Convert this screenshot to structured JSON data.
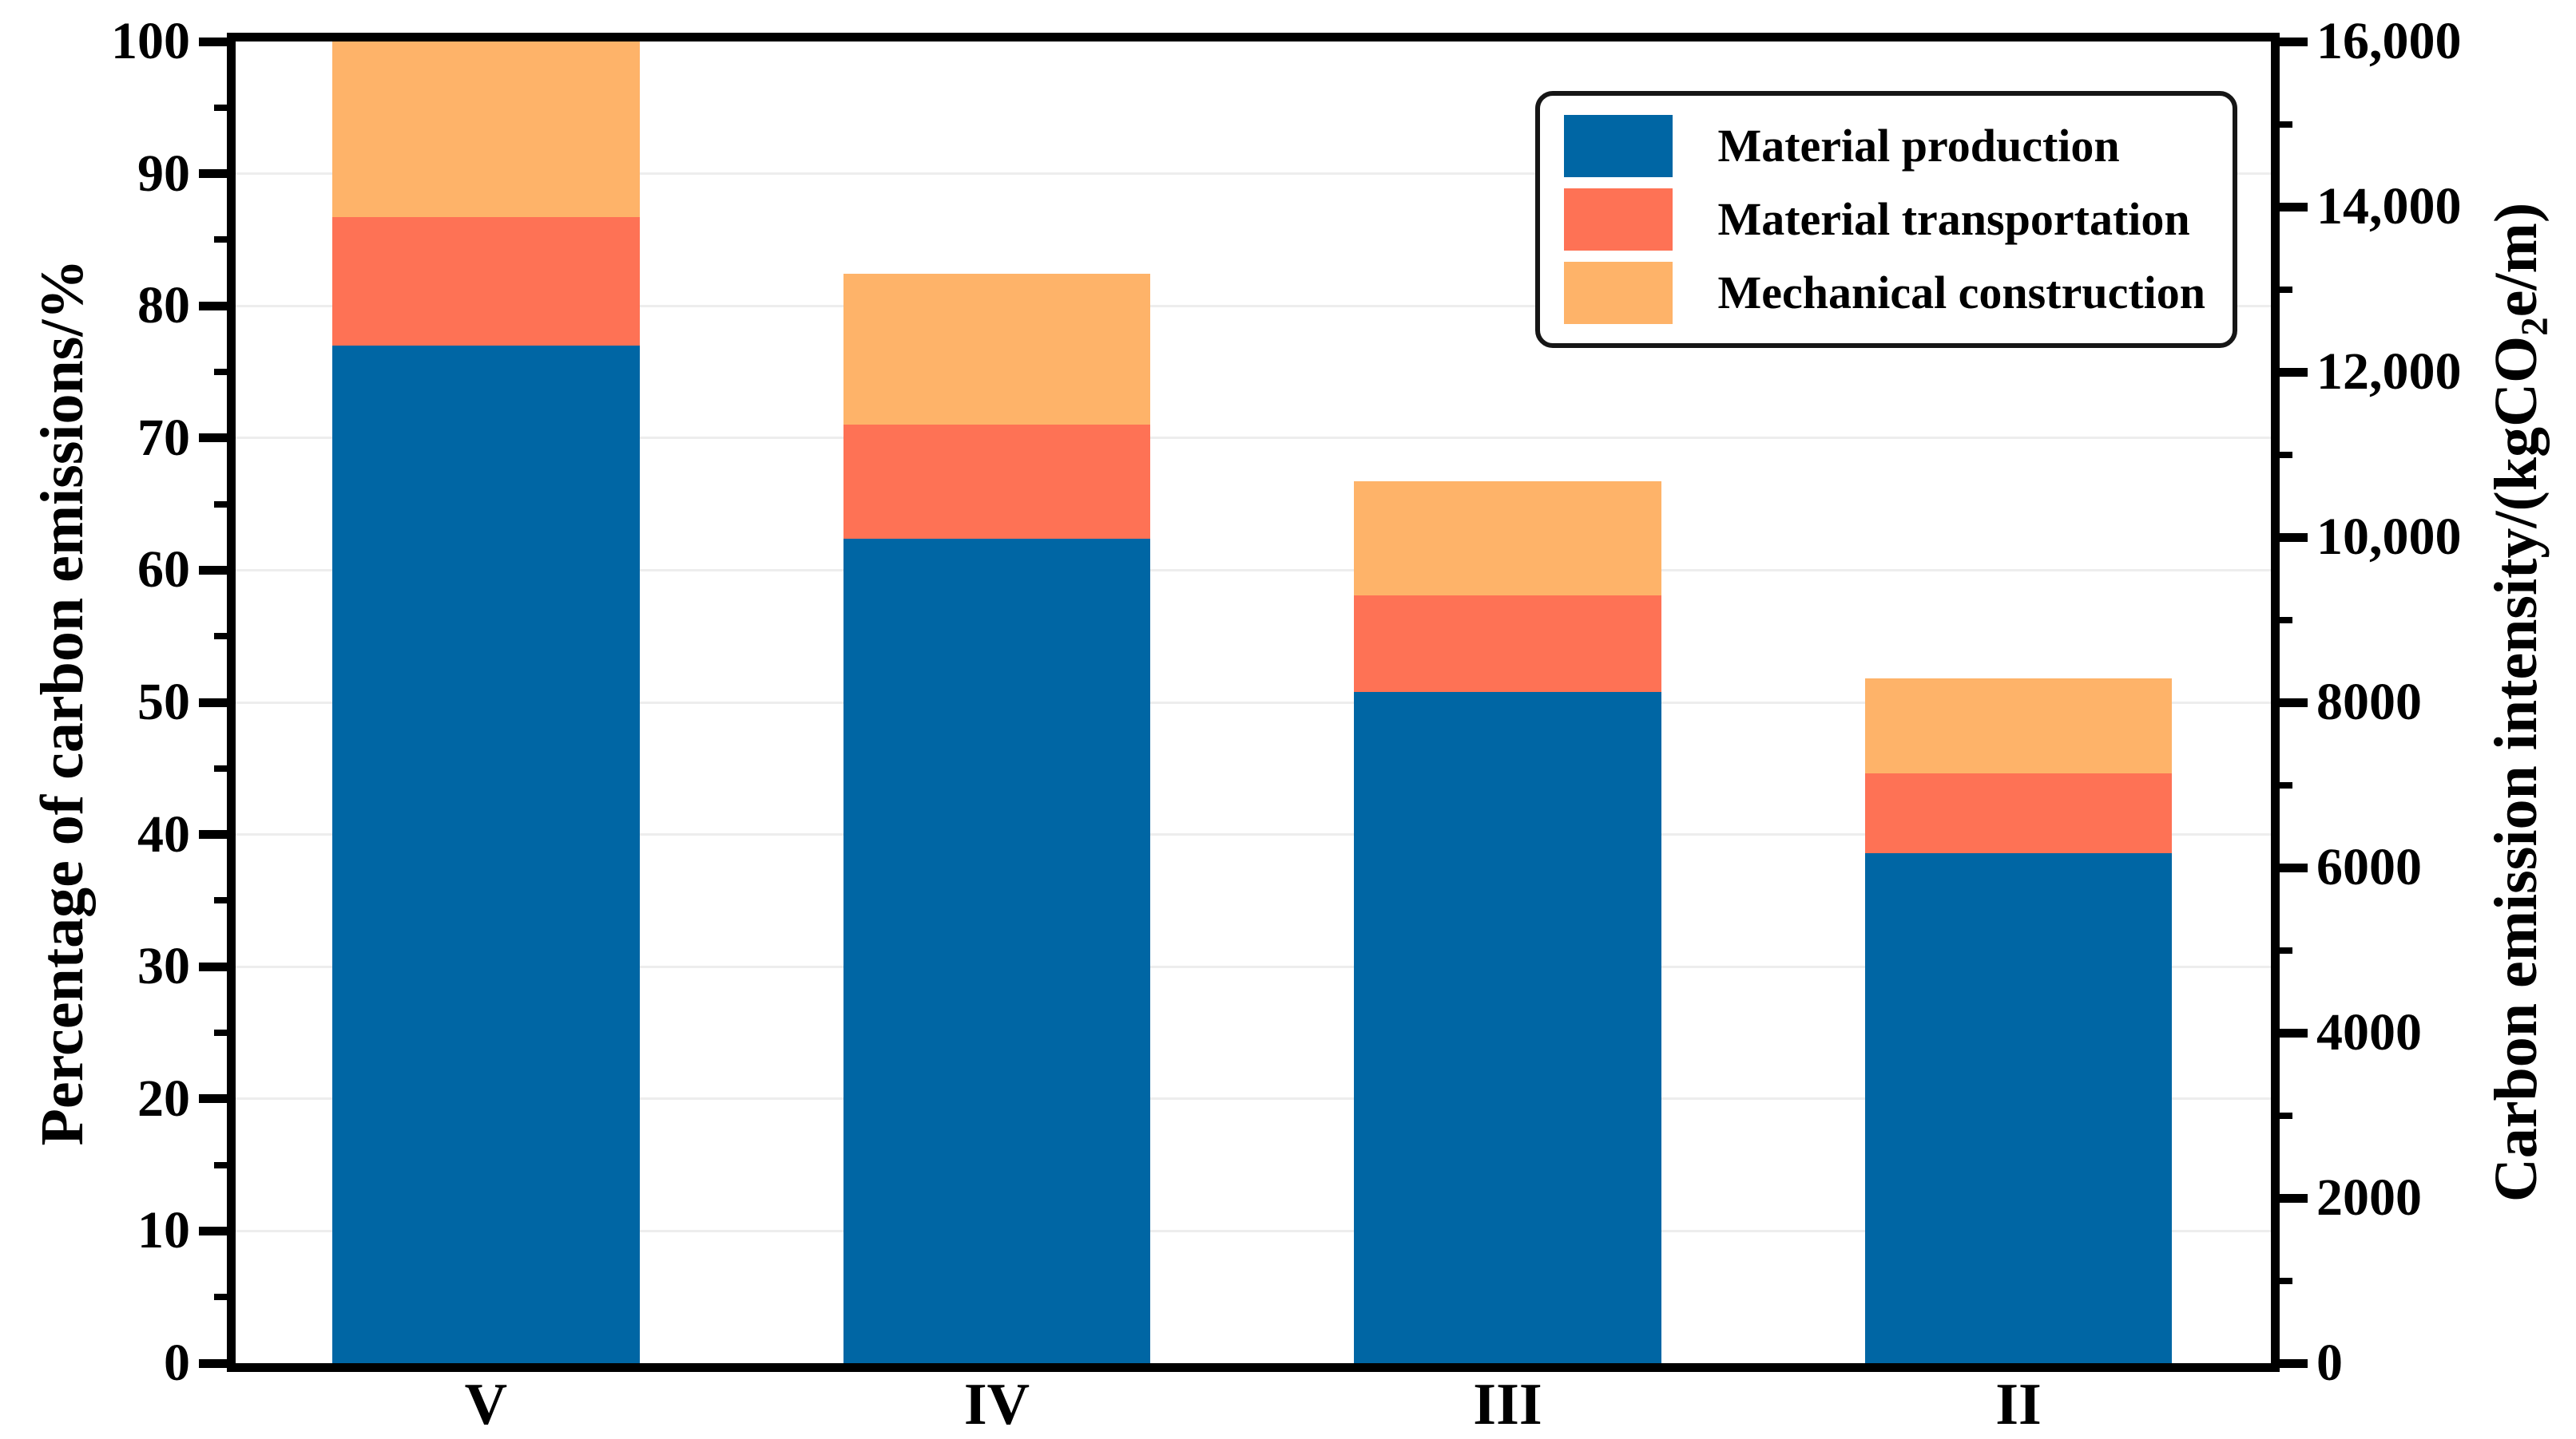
{
  "figure": {
    "background": "#ffffff",
    "axis_color": "#000000",
    "grid_color": "#ededed",
    "legend_border_color": "#161616",
    "left_axis": {
      "title": "Percentage of carbon emissions/%",
      "range_min": 0,
      "range_max": 100,
      "major_step": 10,
      "minor_step": 5,
      "tick_labels": [
        "100",
        "90",
        "80",
        "70",
        "60",
        "50",
        "40",
        "30",
        "20",
        "10",
        "0"
      ]
    },
    "right_axis": {
      "title_prefix": "Carbon emission intensity/(kgCO",
      "title_sub": "2",
      "title_suffix": "e/m)",
      "range_min": 0,
      "range_max": 16000,
      "major_step": 2000,
      "minor_step": 1000,
      "tick_labels": [
        "16,000",
        "14,000",
        "12,000",
        "10,000",
        "8000",
        "6000",
        "4000",
        "2000",
        "0"
      ]
    }
  },
  "chart_data": {
    "type": "bar",
    "stacked": true,
    "categories": [
      "V",
      "IV",
      "III",
      "II"
    ],
    "series": [
      {
        "name": "Material production",
        "color": "#0066a4",
        "values_percent": [
          77.0,
          62.4,
          50.8,
          38.6
        ]
      },
      {
        "name": "Material transportation",
        "color": "#fe7255",
        "values_percent": [
          9.7,
          8.6,
          7.3,
          6.0
        ]
      },
      {
        "name": "Mechanical construction",
        "color": "#feb369",
        "values_percent": [
          13.3,
          11.4,
          8.6,
          7.2
        ]
      }
    ],
    "stack_totals_percent": [
      100.0,
      82.4,
      66.7,
      51.8
    ],
    "stack_totals_intensity_kgCO2e_per_m_approx": [
      16000,
      13180,
      10670,
      8290
    ],
    "ylabel_left": "Percentage of carbon emissions/%",
    "ylabel_right": "Carbon emission intensity/(kgCO2e/m)",
    "ylim_left": [
      0,
      100
    ],
    "ylim_right": [
      0,
      16000
    ],
    "grid": "horizontal major gridlines of left axis, light gray",
    "legend_position": "upper right inside plot",
    "layout": {
      "bar_centers_frac": [
        0.123,
        0.374,
        0.625,
        0.876
      ],
      "bar_width_frac": 0.151
    }
  }
}
